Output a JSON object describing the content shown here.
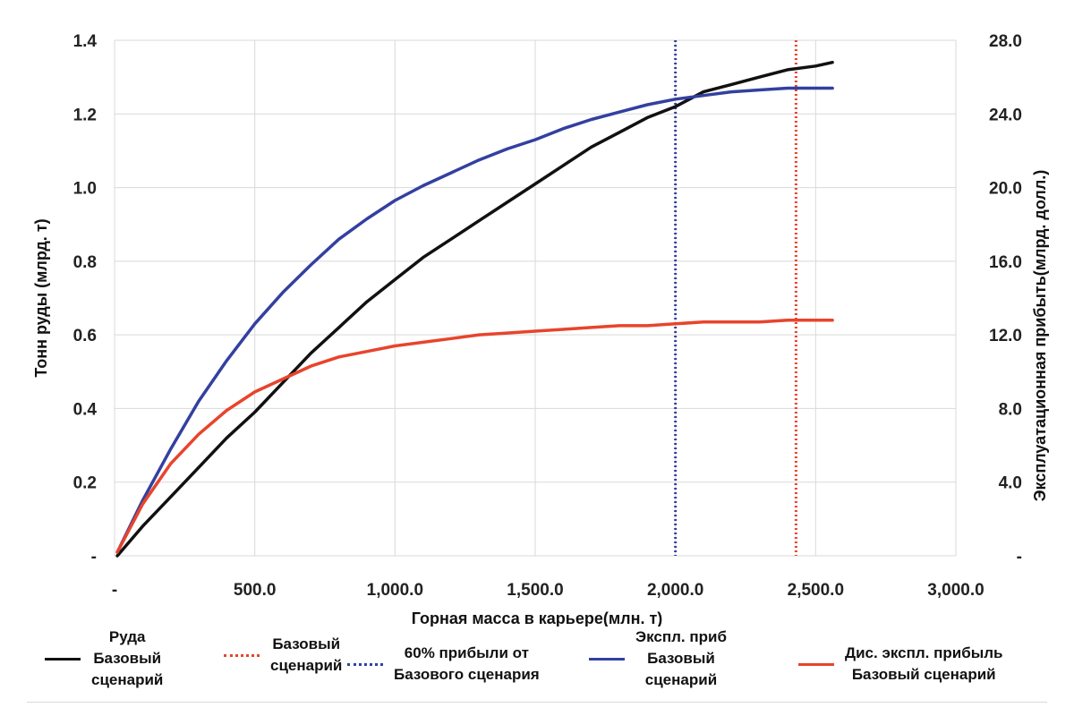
{
  "chart_data": {
    "type": "line",
    "xlabel": "Горная масса в карьере(млн. т)",
    "ylabel": "Тонн руды (млрд. т)",
    "y2label": "Эксплуатационная прибыть(млрд. долл.)",
    "xlim": [
      0,
      3000
    ],
    "ylim": [
      0,
      1.4
    ],
    "y2lim": [
      0,
      28
    ],
    "x_ticks": [
      {
        "value": 0,
        "label": "-"
      },
      {
        "value": 500,
        "label": "500.0"
      },
      {
        "value": 1000,
        "label": "1,000.0"
      },
      {
        "value": 1500,
        "label": "1,500.0"
      },
      {
        "value": 2000,
        "label": "2,000.0"
      },
      {
        "value": 2500,
        "label": "2,500.0"
      },
      {
        "value": 3000,
        "label": "3,000.0"
      }
    ],
    "y_ticks": [
      {
        "value": 0,
        "label": "-"
      },
      {
        "value": 0.2,
        "label": "0.2"
      },
      {
        "value": 0.4,
        "label": "0.4"
      },
      {
        "value": 0.6,
        "label": "0.6"
      },
      {
        "value": 0.8,
        "label": "0.8"
      },
      {
        "value": 1.0,
        "label": "1.0"
      },
      {
        "value": 1.2,
        "label": "1.2"
      },
      {
        "value": 1.4,
        "label": "1.4"
      }
    ],
    "y2_ticks": [
      {
        "value": 0,
        "label": "-"
      },
      {
        "value": 4,
        "label": "4.0"
      },
      {
        "value": 8,
        "label": "8.0"
      },
      {
        "value": 12,
        "label": "12.0"
      },
      {
        "value": 16,
        "label": "16.0"
      },
      {
        "value": 20,
        "label": "20.0"
      },
      {
        "value": 24,
        "label": "24.0"
      },
      {
        "value": 28,
        "label": "28.0"
      }
    ],
    "grid": true,
    "legend_position": "bottom",
    "series": [
      {
        "name": "Руда\nБазовый\nсценарий",
        "axis": "left",
        "color": "#111111",
        "style": "solid",
        "x": [
          10,
          100,
          200,
          300,
          400,
          500,
          600,
          700,
          800,
          900,
          1000,
          1100,
          1200,
          1300,
          1400,
          1500,
          1600,
          1700,
          1800,
          1900,
          2000,
          2100,
          2200,
          2300,
          2400,
          2500,
          2560
        ],
        "y": [
          0.0,
          0.08,
          0.16,
          0.24,
          0.32,
          0.39,
          0.47,
          0.55,
          0.62,
          0.69,
          0.75,
          0.81,
          0.86,
          0.91,
          0.96,
          1.01,
          1.06,
          1.11,
          1.15,
          1.19,
          1.22,
          1.26,
          1.28,
          1.3,
          1.32,
          1.33,
          1.34
        ]
      },
      {
        "name": "Эксп. приб\nБазовый\nсценарий",
        "axis": "right",
        "color": "#3340a0",
        "style": "solid",
        "x": [
          10,
          100,
          200,
          300,
          400,
          500,
          600,
          700,
          800,
          900,
          1000,
          1100,
          1200,
          1300,
          1400,
          1500,
          1600,
          1700,
          1800,
          1900,
          2000,
          2100,
          2200,
          2300,
          2400,
          2500,
          2560
        ],
        "y": [
          0.2,
          3.0,
          5.8,
          8.4,
          10.6,
          12.6,
          14.3,
          15.8,
          17.2,
          18.3,
          19.3,
          20.1,
          20.8,
          21.5,
          22.1,
          22.6,
          23.2,
          23.7,
          24.1,
          24.5,
          24.8,
          25.0,
          25.2,
          25.3,
          25.4,
          25.4,
          25.4
        ]
      },
      {
        "name": "Дис. экспл. прибыль\nБазовый сценарий",
        "axis": "right",
        "color": "#e8442c",
        "style": "solid",
        "x": [
          10,
          100,
          200,
          300,
          400,
          500,
          600,
          700,
          800,
          900,
          1000,
          1100,
          1200,
          1300,
          1400,
          1500,
          1600,
          1700,
          1800,
          1900,
          2000,
          2100,
          2200,
          2300,
          2400,
          2500,
          2560
        ],
        "y": [
          0.2,
          2.8,
          5.0,
          6.6,
          7.9,
          8.9,
          9.6,
          10.3,
          10.8,
          11.1,
          11.4,
          11.6,
          11.8,
          12.0,
          12.1,
          12.2,
          12.3,
          12.4,
          12.5,
          12.5,
          12.6,
          12.7,
          12.7,
          12.7,
          12.8,
          12.8,
          12.8
        ]
      }
    ],
    "vlines": [
      {
        "name": "60% прибыли от\nБазового сценария",
        "x": 2000,
        "color": "#3340a0",
        "style": "dotted"
      },
      {
        "name": "Базовый\nсценарий",
        "x": 2430,
        "color": "#e8442c",
        "style": "dotted"
      }
    ]
  },
  "legend": [
    {
      "text": "Руда\nБазовый\nсценарий",
      "color": "#111111",
      "style": "solid"
    },
    {
      "text": "Базовый\nсценарий",
      "color": "#e8442c",
      "style": "dotted"
    },
    {
      "text": "60% прибыли от\nБазового сценария",
      "color": "#3340a0",
      "style": "dotted"
    },
    {
      "text": "Экспл. приб\nБазовый\nсценарий",
      "color": "#3340a0",
      "style": "solid"
    },
    {
      "text": "Дис. экспл. прибыль\nБазовый сценарий",
      "color": "#e8442c",
      "style": "solid"
    }
  ]
}
